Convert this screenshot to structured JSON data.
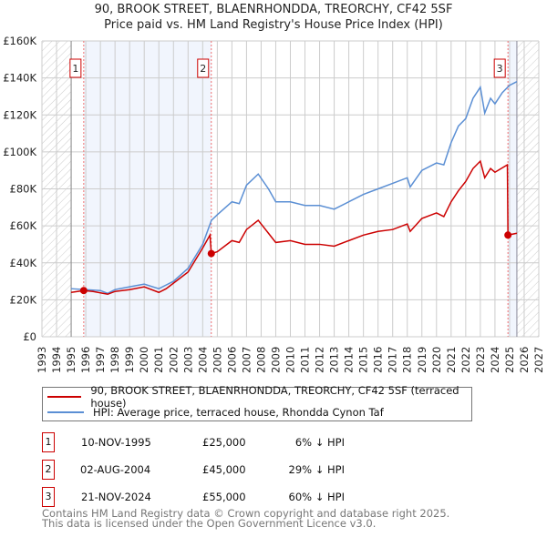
{
  "chart_data": {
    "type": "line",
    "title": "90, BROOK STREET, BLAENRHONDDA, TREORCHY, CF42 5SF",
    "subtitle": "Price paid vs. HM Land Registry's House Price Index (HPI)",
    "xlim": [
      1993,
      2027
    ],
    "ylim": [
      0,
      160000
    ],
    "x_ticks": [
      1993,
      1994,
      1995,
      1996,
      1997,
      1998,
      1999,
      2000,
      2001,
      2002,
      2003,
      2004,
      2005,
      2006,
      2007,
      2008,
      2009,
      2010,
      2011,
      2012,
      2013,
      2014,
      2015,
      2016,
      2017,
      2018,
      2019,
      2020,
      2021,
      2022,
      2023,
      2024,
      2025,
      2026,
      2027
    ],
    "y_ticks": [
      {
        "v": 0,
        "label": "£0"
      },
      {
        "v": 20000,
        "label": "£20K"
      },
      {
        "v": 40000,
        "label": "£40K"
      },
      {
        "v": 60000,
        "label": "£60K"
      },
      {
        "v": 80000,
        "label": "£80K"
      },
      {
        "v": 100000,
        "label": "£100K"
      },
      {
        "v": 120000,
        "label": "£120K"
      },
      {
        "v": 140000,
        "label": "£140K"
      },
      {
        "v": 160000,
        "label": "£160K"
      }
    ],
    "grid": true,
    "series": [
      {
        "name": "90, BROOK STREET, BLAENRHONDDA, TREORCHY, CF42 5SF (terraced house)",
        "color": "#cc0000",
        "x": [
          1995,
          1995.86,
          1996.5,
          1997.5,
          1998,
          1999,
          2000,
          2001,
          2001.5,
          2002,
          2003,
          2004,
          2004.5,
          2004.59,
          2005,
          2006,
          2006.5,
          2007,
          2007.8,
          2008.5,
          2009,
          2010,
          2011,
          2012,
          2013,
          2014,
          2015,
          2016,
          2017,
          2018,
          2018.2,
          2019,
          2020,
          2020.5,
          2021,
          2021.5,
          2022,
          2022.5,
          2023,
          2023.3,
          2023.7,
          2024,
          2024.85,
          2024.89,
          2025.5
        ],
        "y": [
          24000,
          25000,
          24500,
          23000,
          24500,
          25500,
          27000,
          24000,
          26000,
          29000,
          35000,
          48000,
          55000,
          45000,
          46000,
          52000,
          51000,
          58000,
          63000,
          56000,
          51000,
          52000,
          50000,
          50000,
          49000,
          52000,
          55000,
          57000,
          58000,
          61000,
          57000,
          64000,
          67000,
          65000,
          73000,
          79000,
          84000,
          91000,
          95000,
          86000,
          91000,
          89000,
          93000,
          55000,
          56000
        ]
      },
      {
        "name": "HPI: Average price, terraced house, Rhondda Cynon Taf",
        "color": "#5b8fd4",
        "x": [
          1995,
          1996,
          1997,
          1997.5,
          1998,
          1999,
          2000,
          2001,
          2001.5,
          2002,
          2003,
          2004,
          2004.6,
          2005,
          2006,
          2006.5,
          2007,
          2007.8,
          2008.5,
          2009,
          2010,
          2011,
          2012,
          2013,
          2014,
          2015,
          2016,
          2017,
          2018,
          2018.2,
          2019,
          2020,
          2020.5,
          2021,
          2021.5,
          2022,
          2022.5,
          2023,
          2023.3,
          2023.7,
          2024,
          2024.5,
          2025,
          2025.5
        ],
        "y": [
          26000,
          25500,
          25000,
          23500,
          25500,
          27000,
          28500,
          26000,
          28000,
          30000,
          37000,
          50000,
          63000,
          66000,
          73000,
          72000,
          82000,
          88000,
          80000,
          73000,
          73000,
          71000,
          71000,
          69000,
          73000,
          77000,
          80000,
          83000,
          86000,
          81000,
          90000,
          94000,
          93000,
          105000,
          114000,
          118000,
          129000,
          135000,
          121000,
          129000,
          126000,
          132000,
          136000,
          138000
        ]
      }
    ],
    "sales": [
      {
        "n": "1",
        "x": 1995.86,
        "y": 25000,
        "date": "10-NOV-1995",
        "price": "£25,000",
        "hpi": "6% ↓ HPI"
      },
      {
        "n": "2",
        "x": 2004.59,
        "y": 45000,
        "date": "02-AUG-2004",
        "price": "£45,000",
        "hpi": "29% ↓ HPI"
      },
      {
        "n": "3",
        "x": 2024.89,
        "y": 55000,
        "date": "21-NOV-2024",
        "price": "£55,000",
        "hpi": "60% ↓ HPI"
      }
    ],
    "data_start": 1995,
    "data_end": 2025.5
  },
  "footer": {
    "line1": "Contains HM Land Registry data © Crown copyright and database right 2025.",
    "line2": "This data is licensed under the Open Government Licence v3.0."
  }
}
